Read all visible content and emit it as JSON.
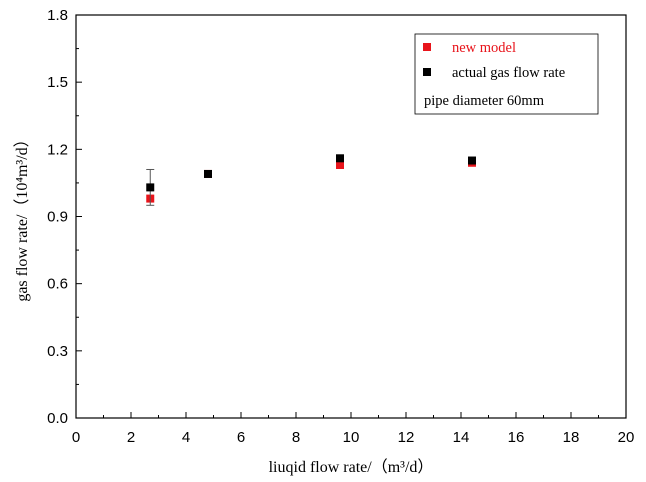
{
  "chart_data": {
    "type": "scatter",
    "xlabel": "liuqid flow rate/（m³/d）",
    "ylabel": "gas flow rate/（10⁴m³/d）",
    "xlim": [
      0,
      20
    ],
    "ylim": [
      0,
      1.8
    ],
    "x_ticks": [
      "0",
      "2",
      "4",
      "6",
      "8",
      "10",
      "12",
      "14",
      "16",
      "18",
      "20"
    ],
    "y_ticks": [
      "0.0",
      "0.3",
      "0.6",
      "0.9",
      "1.2",
      "1.5",
      "1.8"
    ],
    "grid": false,
    "legend_position": "top-right",
    "series": [
      {
        "name": "new model",
        "color": "#e8141b",
        "marker": "square",
        "points": [
          {
            "x": 2.7,
            "y": 0.98
          },
          {
            "x": 4.8,
            "y": 1.09
          },
          {
            "x": 9.6,
            "y": 1.13
          },
          {
            "x": 14.4,
            "y": 1.14
          }
        ]
      },
      {
        "name": "actual gas flow rate",
        "color": "#000000",
        "marker": "square",
        "points": [
          {
            "x": 2.7,
            "y": 1.03,
            "err": 0.08
          },
          {
            "x": 4.8,
            "y": 1.09
          },
          {
            "x": 9.6,
            "y": 1.16
          },
          {
            "x": 14.4,
            "y": 1.15
          }
        ]
      }
    ],
    "legend_note": "pipe diameter 60mm"
  }
}
